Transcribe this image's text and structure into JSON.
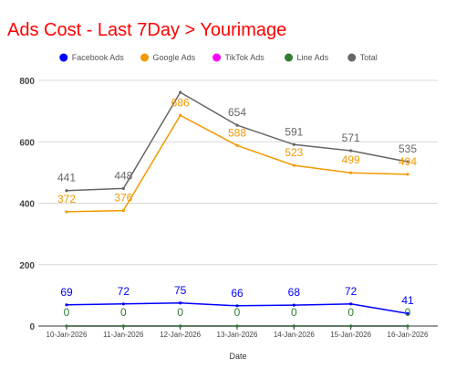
{
  "chart_data": {
    "type": "line",
    "title": "Ads Cost - Last 7Day > Yourimage",
    "xlabel": "Date",
    "ylabel": "",
    "ylim": [
      0,
      800
    ],
    "yticks": [
      0,
      200,
      400,
      600,
      800
    ],
    "grid": true,
    "legend_position": "top",
    "categories": [
      "10-Jan-2026",
      "11-Jan-2026",
      "12-Jan-2026",
      "13-Jan-2026",
      "14-Jan-2026",
      "15-Jan-2026",
      "16-Jan-2026"
    ],
    "series": [
      {
        "name": "Facebook Ads",
        "color": "#0000ff",
        "values": [
          69,
          72,
          75,
          66,
          68,
          72,
          41
        ]
      },
      {
        "name": "Google Ads",
        "color": "#f29900",
        "values": [
          372,
          376,
          686,
          588,
          523,
          499,
          494
        ]
      },
      {
        "name": "TikTok Ads",
        "color": "#ff00ff",
        "values": [
          0,
          0,
          0,
          0,
          0,
          0,
          0
        ],
        "show_labels": false
      },
      {
        "name": "Line Ads",
        "color": "#2e7d32",
        "values": [
          0,
          0,
          0,
          0,
          0,
          0,
          0
        ]
      },
      {
        "name": "Total",
        "color": "#666666",
        "values": [
          441,
          448,
          761,
          654,
          591,
          571,
          535
        ],
        "hidden_labels": [
          2
        ]
      }
    ]
  }
}
